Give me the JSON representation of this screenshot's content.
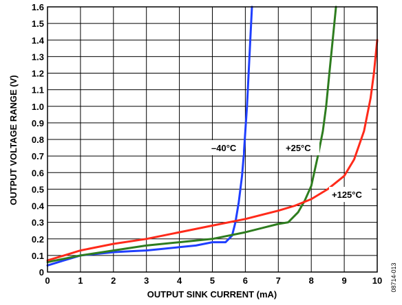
{
  "chart_data": {
    "type": "line",
    "xlabel": "OUTPUT SINK CURRENT (mA)",
    "ylabel": "OUTPUT VOLTAGE RANGE (V)",
    "xlim": [
      0,
      10
    ],
    "ylim": [
      0,
      1.6
    ],
    "grid": true,
    "x_ticks": [
      "0",
      "1",
      "2",
      "3",
      "4",
      "5",
      "6",
      "7",
      "8",
      "9",
      "10"
    ],
    "y_ticks": [
      "0",
      "0.1",
      "0.2",
      "0.3",
      "0.4",
      "0.5",
      "0.6",
      "0.7",
      "0.8",
      "0.9",
      "1.0",
      "1.1",
      "1.2",
      "1.3",
      "1.4",
      "1.5",
      "1.6"
    ],
    "series": [
      {
        "name": "–40°C",
        "color": "#1f3fff",
        "points": [
          [
            0,
            0.04
          ],
          [
            0.5,
            0.07
          ],
          [
            1,
            0.1
          ],
          [
            1.5,
            0.11
          ],
          [
            2,
            0.12
          ],
          [
            2.5,
            0.125
          ],
          [
            3,
            0.13
          ],
          [
            3.5,
            0.14
          ],
          [
            4,
            0.15
          ],
          [
            4.5,
            0.16
          ],
          [
            5,
            0.18
          ],
          [
            5.4,
            0.18
          ],
          [
            5.6,
            0.22
          ],
          [
            5.7,
            0.3
          ],
          [
            5.8,
            0.42
          ],
          [
            5.9,
            0.58
          ],
          [
            5.95,
            0.7
          ],
          [
            6.0,
            0.85
          ],
          [
            6.05,
            1.0
          ],
          [
            6.1,
            1.2
          ],
          [
            6.15,
            1.4
          ],
          [
            6.2,
            1.6
          ]
        ]
      },
      {
        "name": "+25°C",
        "color": "#2e7d1f",
        "points": [
          [
            0,
            0.06
          ],
          [
            0.5,
            0.08
          ],
          [
            1,
            0.1
          ],
          [
            2,
            0.13
          ],
          [
            3,
            0.16
          ],
          [
            4,
            0.18
          ],
          [
            5,
            0.2
          ],
          [
            6,
            0.24
          ],
          [
            7,
            0.29
          ],
          [
            7.3,
            0.3
          ],
          [
            7.6,
            0.36
          ],
          [
            7.8,
            0.43
          ],
          [
            8.0,
            0.52
          ],
          [
            8.2,
            0.7
          ],
          [
            8.35,
            0.85
          ],
          [
            8.45,
            1.0
          ],
          [
            8.55,
            1.2
          ],
          [
            8.65,
            1.4
          ],
          [
            8.75,
            1.6
          ]
        ]
      },
      {
        "name": "+125°C",
        "color": "#ff2a1a",
        "points": [
          [
            0,
            0.07
          ],
          [
            0.5,
            0.1
          ],
          [
            1,
            0.13
          ],
          [
            2,
            0.17
          ],
          [
            3,
            0.2
          ],
          [
            4,
            0.24
          ],
          [
            5,
            0.28
          ],
          [
            6,
            0.32
          ],
          [
            7,
            0.37
          ],
          [
            7.5,
            0.4
          ],
          [
            8,
            0.44
          ],
          [
            8.5,
            0.5
          ],
          [
            9.0,
            0.58
          ],
          [
            9.3,
            0.68
          ],
          [
            9.6,
            0.85
          ],
          [
            9.8,
            1.05
          ],
          [
            9.9,
            1.2
          ],
          [
            10,
            1.4
          ]
        ]
      }
    ],
    "annotations": [
      "–40°C",
      "+25°C",
      "+125°C"
    ],
    "figure_code": "08714-013"
  }
}
